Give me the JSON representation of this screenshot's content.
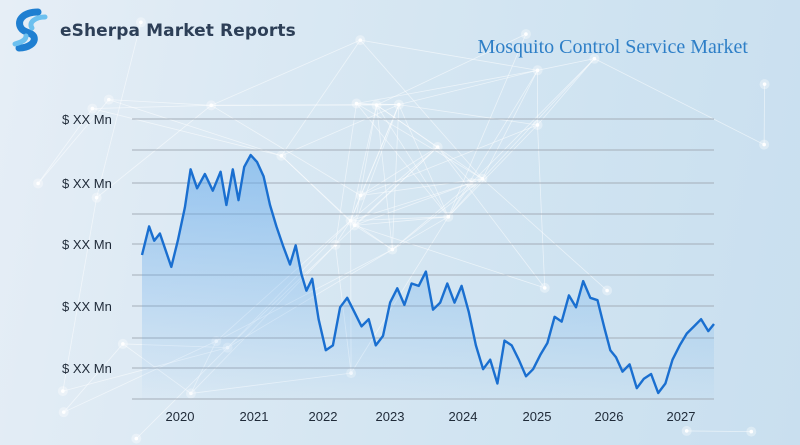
{
  "brand": {
    "name": "eSherpa Market Reports",
    "logo_icon": "esherpa-logo-icon",
    "logo_colors": [
      "#1f7fd1",
      "#6cc0ef"
    ]
  },
  "chart_data": {
    "type": "area",
    "title": "Mosquito Control Service Market",
    "xlabel": "",
    "ylabel": "",
    "x_ticks": [
      "2020",
      "2021",
      "2022",
      "2023",
      "2024",
      "2025",
      "2026",
      "2027"
    ],
    "y_ticks": [
      "$ XX Mn",
      "$ XX Mn",
      "$ XX Mn",
      "$ XX Mn",
      "$ XX Mn"
    ],
    "ylim": [
      0,
      100
    ],
    "grid": true,
    "colors": {
      "line": "#1a6fd0",
      "fill_top": "#5aa4ea",
      "grid": "#a4adb8"
    },
    "series": [
      {
        "x": [
          2019.45,
          2019.55,
          2019.62,
          2019.7,
          2019.78,
          2019.86,
          2019.95,
          2020.05,
          2020.13,
          2020.22,
          2020.33,
          2020.44,
          2020.55,
          2020.63,
          2020.72,
          2020.8,
          2020.88,
          2020.97,
          2021.06,
          2021.15,
          2021.24,
          2021.33,
          2021.42,
          2021.52,
          2021.6,
          2021.68,
          2021.75,
          2021.83,
          2021.92,
          2022.02,
          2022.12,
          2022.22,
          2022.32,
          2022.42,
          2022.52,
          2022.62,
          2022.72,
          2022.82,
          2022.92,
          2023.02,
          2023.12,
          2023.22,
          2023.32,
          2023.42,
          2023.52,
          2023.62,
          2023.72,
          2023.82,
          2023.92,
          2024.02,
          2024.12,
          2024.22,
          2024.32,
          2024.42,
          2024.52,
          2024.62,
          2024.72,
          2024.82,
          2024.92,
          2025.02,
          2025.12,
          2025.22,
          2025.32,
          2025.42,
          2025.52,
          2025.62,
          2025.72,
          2025.82,
          2025.92,
          2026.0,
          2026.08,
          2026.17,
          2026.27,
          2026.37,
          2026.47,
          2026.57,
          2026.67,
          2026.77,
          2026.87,
          2026.97,
          2027.07,
          2027.17,
          2027.27,
          2027.37,
          2027.45
        ],
        "y": [
          58,
          70,
          64,
          67,
          60,
          53,
          64,
          78,
          94,
          86,
          92,
          85,
          93,
          79,
          94,
          81,
          95,
          100,
          97,
          91,
          79,
          70,
          62,
          54,
          62,
          50,
          43,
          48,
          31,
          18,
          20,
          36,
          40,
          34,
          28,
          31,
          20,
          24,
          38,
          44,
          37,
          46,
          45,
          51,
          35,
          38,
          46,
          38,
          45,
          34,
          20,
          10,
          14,
          4,
          22,
          20,
          14,
          7,
          10,
          16,
          21,
          32,
          30,
          41,
          36,
          47,
          40,
          39,
          27,
          18,
          15,
          9,
          12,
          2,
          6,
          8,
          0,
          4,
          14,
          20,
          25,
          28,
          31,
          26,
          29
        ]
      }
    ]
  }
}
